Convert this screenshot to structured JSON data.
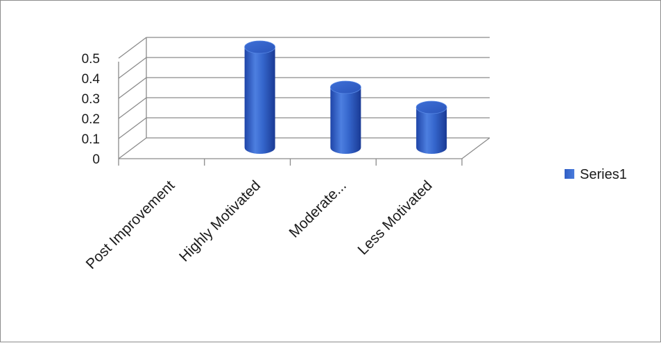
{
  "chart_data": {
    "type": "bar",
    "style": "3d-cylinder",
    "categories": [
      "Post Improvement",
      "Highly Motivated",
      "Moderate...",
      "Less Motivated"
    ],
    "series": [
      {
        "name": "Series1",
        "values": [
          0,
          0.5,
          0.3,
          0.2
        ]
      }
    ],
    "title": "",
    "xlabel": "",
    "ylabel": "",
    "ylim": [
      0,
      0.5
    ],
    "yticks": [
      "0",
      "0.1",
      "0.2",
      "0.3",
      "0.4",
      "0.5"
    ],
    "grid": true,
    "legend_position": "right",
    "series_color": "#4472C4"
  }
}
